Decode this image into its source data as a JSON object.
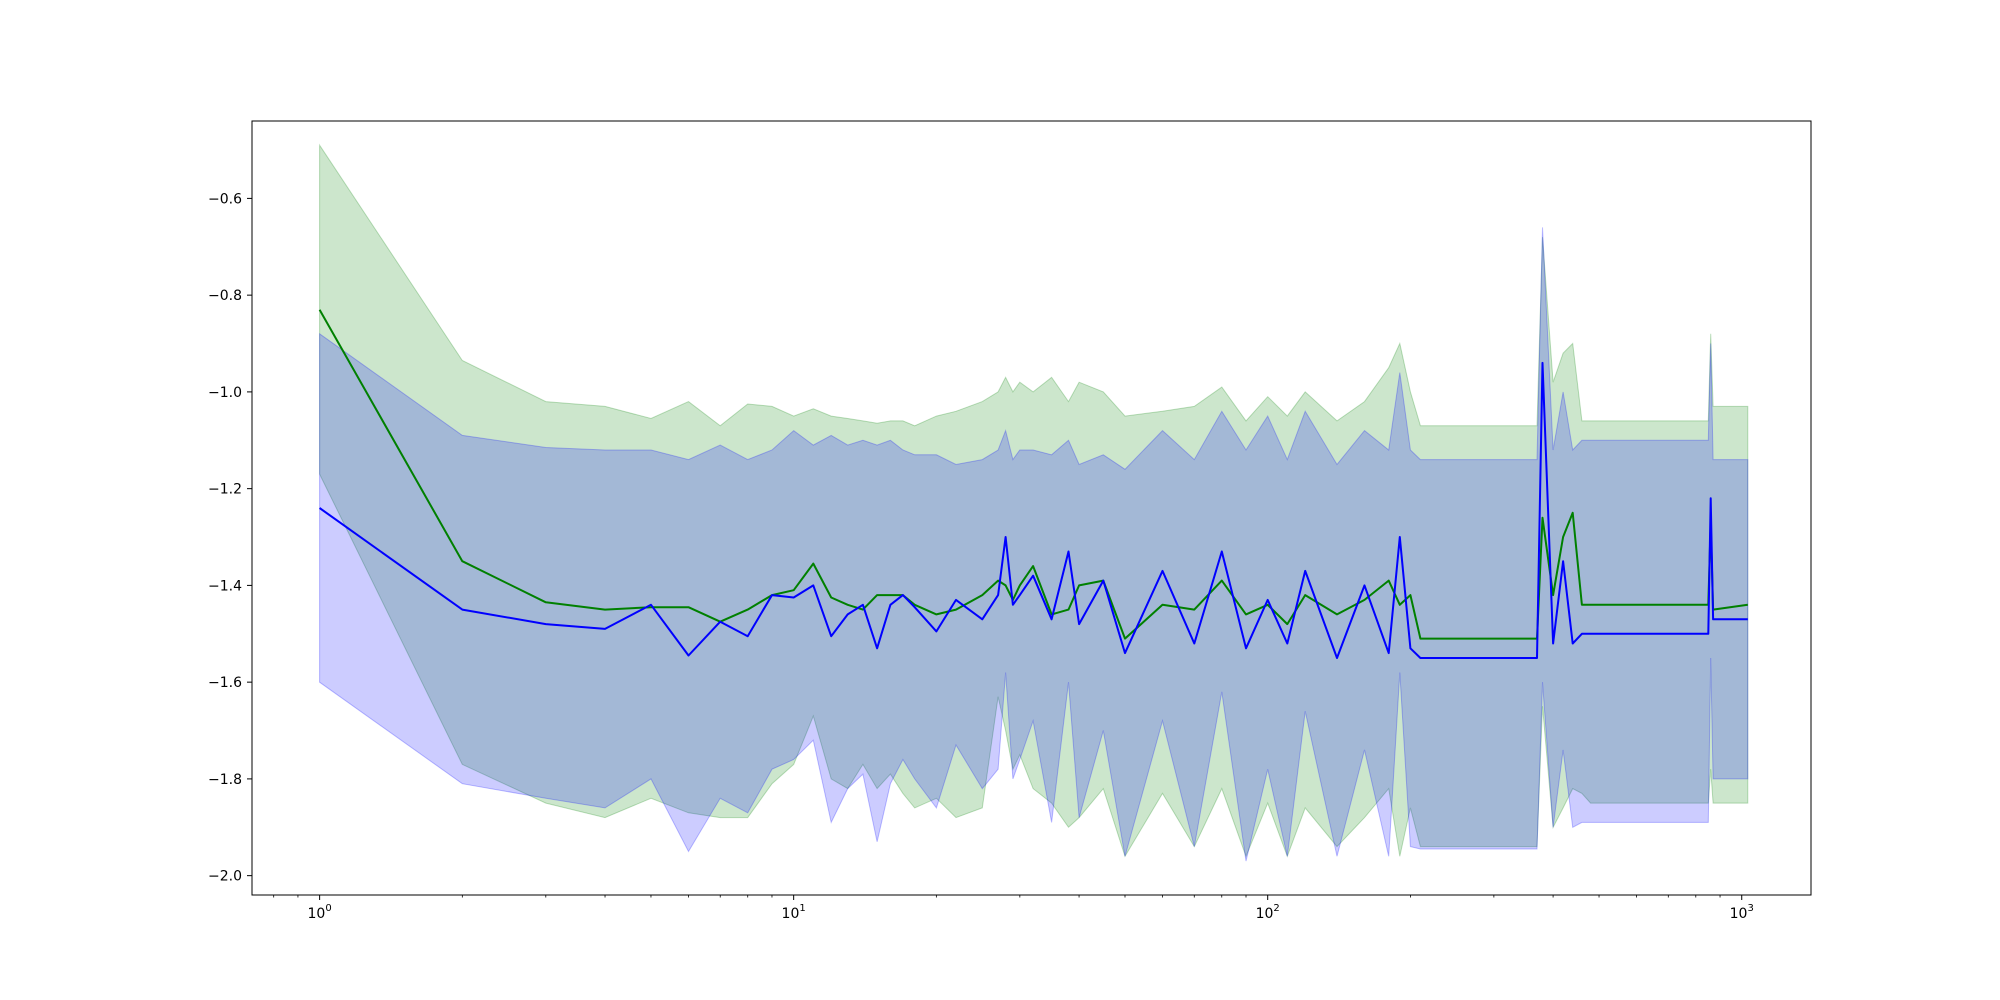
{
  "chart_data": {
    "type": "line",
    "title": "",
    "xlabel": "",
    "ylabel": "",
    "xscale": "log",
    "xlim": [
      0.72,
      1400
    ],
    "ylim": [
      -2.04,
      -0.44
    ],
    "grid": false,
    "x_ticks": [
      {
        "value": 1,
        "base": "10",
        "exp": "0"
      },
      {
        "value": 10,
        "base": "10",
        "exp": "1"
      },
      {
        "value": 100,
        "base": "10",
        "exp": "2"
      },
      {
        "value": 1000,
        "base": "10",
        "exp": "3"
      }
    ],
    "y_ticks": [
      {
        "value": -0.6,
        "label": "−0.6"
      },
      {
        "value": -0.8,
        "label": "−0.8"
      },
      {
        "value": -1.0,
        "label": "−1.0"
      },
      {
        "value": -1.2,
        "label": "−1.2"
      },
      {
        "value": -1.4,
        "label": "−1.4"
      },
      {
        "value": -1.6,
        "label": "−1.6"
      },
      {
        "value": -1.8,
        "label": "−1.8"
      },
      {
        "value": -2.0,
        "label": "−2.0"
      }
    ],
    "series": [
      {
        "color": "#008000",
        "band_color": "#008000",
        "band_opacity": 0.2,
        "x": [
          1,
          2,
          3,
          4,
          5,
          6,
          7,
          8,
          9,
          10,
          11,
          12,
          13,
          14,
          15,
          16,
          17,
          18,
          20,
          22,
          25,
          27,
          28,
          29,
          30,
          32,
          35,
          38,
          40,
          45,
          50,
          60,
          70,
          80,
          90,
          100,
          110,
          120,
          140,
          160,
          180,
          190,
          200,
          210,
          370,
          380,
          400,
          420,
          440,
          460,
          480,
          850,
          860,
          870,
          1030
        ],
        "y": [
          -0.83,
          -1.35,
          -1.435,
          -1.45,
          -1.445,
          -1.445,
          -1.475,
          -1.45,
          -1.42,
          -1.41,
          -1.355,
          -1.425,
          -1.44,
          -1.45,
          -1.42,
          -1.42,
          -1.42,
          -1.44,
          -1.46,
          -1.45,
          -1.42,
          -1.39,
          -1.4,
          -1.43,
          -1.4,
          -1.36,
          -1.46,
          -1.45,
          -1.4,
          -1.39,
          -1.51,
          -1.44,
          -1.45,
          -1.39,
          -1.46,
          -1.44,
          -1.48,
          -1.42,
          -1.46,
          -1.43,
          -1.39,
          -1.44,
          -1.42,
          -1.51,
          -1.51,
          -1.26,
          -1.42,
          -1.3,
          -1.25,
          -1.44,
          -1.44,
          -1.44,
          -1.27,
          -1.45,
          -1.44
        ],
        "upper": [
          -0.49,
          -0.935,
          -1.02,
          -1.03,
          -1.055,
          -1.02,
          -1.07,
          -1.025,
          -1.03,
          -1.05,
          -1.035,
          -1.05,
          -1.055,
          -1.06,
          -1.065,
          -1.06,
          -1.06,
          -1.07,
          -1.05,
          -1.04,
          -1.02,
          -1.0,
          -0.97,
          -1.0,
          -0.98,
          -1.0,
          -0.97,
          -1.02,
          -0.98,
          -1.0,
          -1.05,
          -1.04,
          -1.03,
          -0.99,
          -1.06,
          -1.01,
          -1.05,
          -1.0,
          -1.06,
          -1.02,
          -0.95,
          -0.9,
          -1.0,
          -1.07,
          -1.07,
          -0.68,
          -0.98,
          -0.92,
          -0.9,
          -1.06,
          -1.06,
          -1.06,
          -0.88,
          -1.03,
          -1.03
        ],
        "lower": [
          -1.17,
          -1.77,
          -1.85,
          -1.88,
          -1.84,
          -1.87,
          -1.88,
          -1.88,
          -1.81,
          -1.77,
          -1.67,
          -1.8,
          -1.82,
          -1.77,
          -1.82,
          -1.79,
          -1.83,
          -1.86,
          -1.84,
          -1.88,
          -1.86,
          -1.63,
          -1.7,
          -1.78,
          -1.75,
          -1.82,
          -1.85,
          -1.9,
          -1.88,
          -1.82,
          -1.96,
          -1.83,
          -1.94,
          -1.82,
          -1.96,
          -1.85,
          -1.96,
          -1.86,
          -1.94,
          -1.88,
          -1.82,
          -1.96,
          -1.86,
          -1.94,
          -1.94,
          -1.65,
          -1.9,
          -1.86,
          -1.82,
          -1.83,
          -1.85,
          -1.85,
          -1.78,
          -1.85,
          -1.85
        ]
      },
      {
        "color": "#0000ff",
        "band_color": "#0000ff",
        "band_opacity": 0.2,
        "x": [
          1,
          2,
          3,
          4,
          5,
          6,
          7,
          8,
          9,
          10,
          11,
          12,
          13,
          14,
          15,
          16,
          17,
          18,
          20,
          22,
          25,
          27,
          28,
          29,
          30,
          32,
          35,
          38,
          40,
          45,
          50,
          60,
          70,
          80,
          90,
          100,
          110,
          120,
          140,
          160,
          180,
          190,
          200,
          210,
          370,
          380,
          400,
          420,
          440,
          460,
          480,
          850,
          860,
          870,
          1030
        ],
        "y": [
          -1.24,
          -1.45,
          -1.48,
          -1.49,
          -1.44,
          -1.545,
          -1.475,
          -1.505,
          -1.42,
          -1.425,
          -1.4,
          -1.505,
          -1.46,
          -1.44,
          -1.53,
          -1.44,
          -1.42,
          -1.445,
          -1.495,
          -1.43,
          -1.47,
          -1.42,
          -1.3,
          -1.44,
          -1.42,
          -1.38,
          -1.47,
          -1.33,
          -1.48,
          -1.39,
          -1.54,
          -1.37,
          -1.52,
          -1.33,
          -1.53,
          -1.43,
          -1.52,
          -1.37,
          -1.55,
          -1.4,
          -1.54,
          -1.3,
          -1.53,
          -1.55,
          -1.55,
          -0.94,
          -1.52,
          -1.35,
          -1.52,
          -1.5,
          -1.5,
          -1.5,
          -1.22,
          -1.47,
          -1.47
        ],
        "upper": [
          -0.88,
          -1.09,
          -1.115,
          -1.12,
          -1.12,
          -1.14,
          -1.11,
          -1.14,
          -1.12,
          -1.08,
          -1.11,
          -1.09,
          -1.11,
          -1.1,
          -1.11,
          -1.1,
          -1.12,
          -1.13,
          -1.13,
          -1.15,
          -1.14,
          -1.12,
          -1.08,
          -1.14,
          -1.12,
          -1.12,
          -1.13,
          -1.1,
          -1.15,
          -1.13,
          -1.16,
          -1.08,
          -1.14,
          -1.04,
          -1.12,
          -1.05,
          -1.14,
          -1.04,
          -1.15,
          -1.08,
          -1.12,
          -0.96,
          -1.12,
          -1.14,
          -1.14,
          -0.66,
          -1.12,
          -1.0,
          -1.12,
          -1.1,
          -1.1,
          -1.1,
          -0.9,
          -1.14,
          -1.14
        ],
        "lower": [
          -1.6,
          -1.81,
          -1.84,
          -1.86,
          -1.8,
          -1.95,
          -1.84,
          -1.87,
          -1.78,
          -1.76,
          -1.72,
          -1.89,
          -1.82,
          -1.79,
          -1.93,
          -1.81,
          -1.76,
          -1.8,
          -1.86,
          -1.73,
          -1.82,
          -1.78,
          -1.58,
          -1.8,
          -1.76,
          -1.68,
          -1.89,
          -1.6,
          -1.88,
          -1.7,
          -1.96,
          -1.68,
          -1.94,
          -1.62,
          -1.97,
          -1.78,
          -1.96,
          -1.66,
          -1.96,
          -1.74,
          -1.96,
          -1.58,
          -1.94,
          -1.945,
          -1.945,
          -1.6,
          -1.9,
          -1.74,
          -1.9,
          -1.89,
          -1.89,
          -1.89,
          -1.55,
          -1.8,
          -1.8
        ]
      }
    ]
  }
}
